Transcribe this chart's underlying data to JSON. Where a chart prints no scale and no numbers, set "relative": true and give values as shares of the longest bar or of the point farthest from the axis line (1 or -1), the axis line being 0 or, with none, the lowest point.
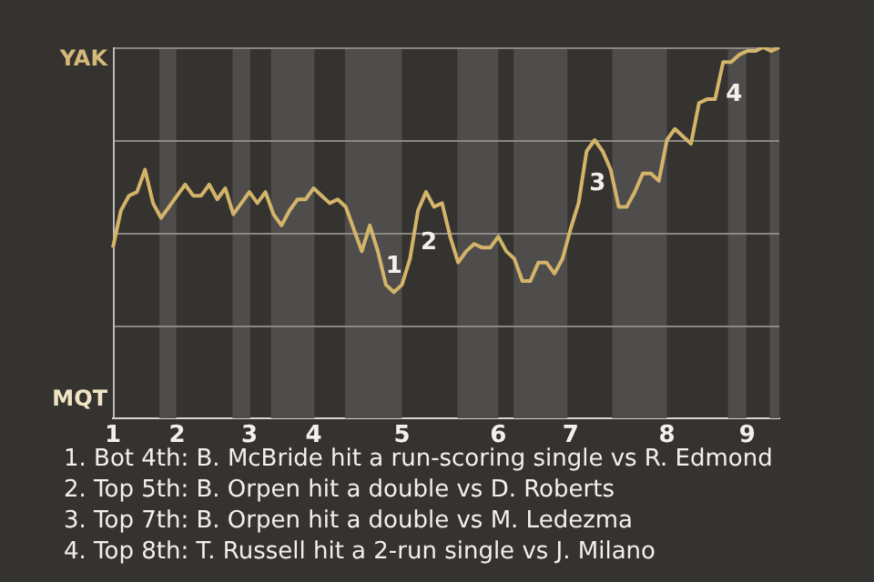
{
  "chart_data": {
    "type": "line",
    "relative": true,
    "categories": [
      "1",
      null,
      null,
      null,
      null,
      null,
      null,
      null,
      "2",
      null,
      null,
      null,
      null,
      null,
      null,
      null,
      null,
      "3",
      null,
      null,
      null,
      null,
      null,
      null,
      null,
      "4",
      null,
      null,
      null,
      null,
      null,
      null,
      null,
      null,
      null,
      null,
      "5",
      null,
      null,
      null,
      null,
      null,
      null,
      null,
      null,
      null,
      null,
      null,
      "6",
      null,
      null,
      null,
      null,
      null,
      null,
      null,
      null,
      "7",
      null,
      null,
      null,
      null,
      null,
      null,
      null,
      null,
      null,
      null,
      null,
      "8",
      null,
      null,
      null,
      null,
      null,
      null,
      null,
      null,
      null,
      "9",
      null,
      null,
      null,
      null
    ],
    "series": [
      {
        "color": "#d4b46a",
        "values": [
          0.46,
          0.56,
          0.6,
          0.61,
          0.67,
          0.58,
          0.54,
          0.57,
          0.6,
          0.63,
          0.6,
          0.6,
          0.63,
          0.59,
          0.62,
          0.55,
          0.58,
          0.61,
          0.58,
          0.61,
          0.55,
          0.52,
          0.56,
          0.59,
          0.59,
          0.62,
          0.6,
          0.58,
          0.59,
          0.57,
          0.51,
          0.45,
          0.52,
          0.45,
          0.36,
          0.34,
          0.36,
          0.43,
          0.56,
          0.61,
          0.57,
          0.58,
          0.49,
          0.42,
          0.45,
          0.47,
          0.46,
          0.46,
          0.49,
          0.45,
          0.43,
          0.37,
          0.37,
          0.42,
          0.42,
          0.39,
          0.43,
          0.51,
          0.58,
          0.72,
          0.75,
          0.72,
          0.67,
          0.57,
          0.57,
          0.61,
          0.66,
          0.66,
          0.64,
          0.75,
          0.78,
          0.76,
          0.74,
          0.85,
          0.86,
          0.86,
          0.96,
          0.96,
          0.98,
          0.99,
          0.99,
          1.0,
          0.99,
          1.0
        ]
      }
    ],
    "ref_lines": [
      {
        "axis": "y",
        "value": 0.25,
        "color": "#8a8885"
      },
      {
        "axis": "y",
        "value": 0.5,
        "color": "#8a8885"
      },
      {
        "axis": "y",
        "value": 0.75,
        "color": "#8a8885"
      },
      {
        "axis": "y",
        "value": 1,
        "color": "#8a8885"
      }
    ],
    "annotations": [
      "YAK",
      "MQT",
      {
        "text": "1",
        "y": 0.34
      },
      {
        "text": "2",
        "y": 0.56
      },
      {
        "text": "3",
        "y": 0.72
      },
      {
        "text": "4",
        "y": 0.96
      },
      "1. Bot 4th: B. McBride hit a run-scoring single vs R. Edmond",
      "2. Top 5th: B. Orpen hit a double vs D. Roberts",
      "3. Top 7th: B. Orpen hit a double vs M. Ledezma",
      "4. Top 8th: T. Russell hit a 2-run single vs J. Milano"
    ]
  }
}
